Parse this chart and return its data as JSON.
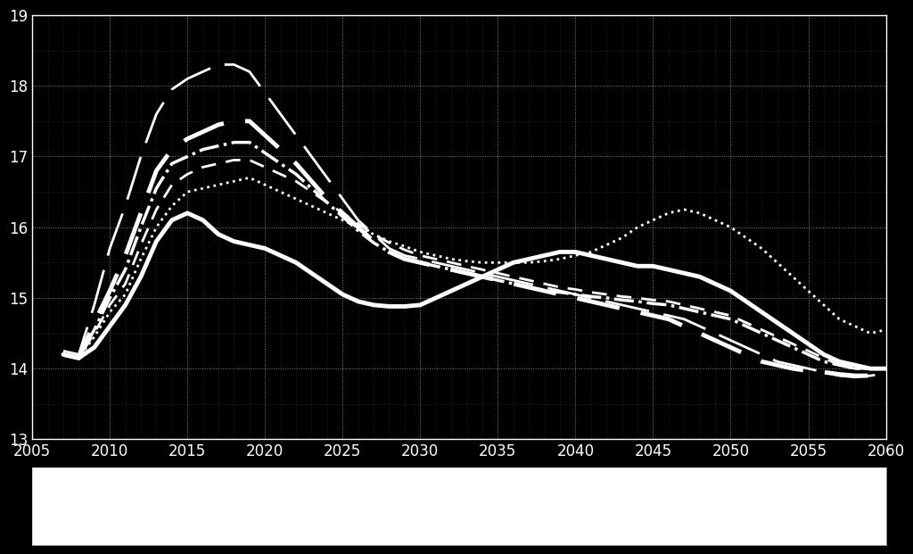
{
  "background_color": "#000000",
  "plot_bg_color": "#000000",
  "line_color": "#ffffff",
  "grid_color": "#888888",
  "text_color": "#ffffff",
  "xlim": [
    2005,
    2060
  ],
  "ylim": [
    13,
    19
  ],
  "xticks": [
    2005,
    2010,
    2015,
    2020,
    2025,
    2030,
    2035,
    2040,
    2045,
    2050,
    2055,
    2060
  ],
  "yticks": [
    13,
    14,
    15,
    16,
    17,
    18,
    19
  ],
  "lines": {
    "solid_thick": {
      "x": [
        2007,
        2008,
        2009,
        2010,
        2011,
        2012,
        2013,
        2014,
        2015,
        2016,
        2017,
        2018,
        2019,
        2020,
        2021,
        2022,
        2023,
        2024,
        2025,
        2026,
        2027,
        2028,
        2029,
        2030,
        2031,
        2032,
        2033,
        2034,
        2035,
        2036,
        2037,
        2038,
        2039,
        2040,
        2041,
        2042,
        2043,
        2044,
        2045,
        2046,
        2047,
        2048,
        2049,
        2050,
        2051,
        2052,
        2053,
        2054,
        2055,
        2056,
        2057,
        2058,
        2059,
        2060
      ],
      "y": [
        14.2,
        14.15,
        14.3,
        14.6,
        14.9,
        15.3,
        15.8,
        16.1,
        16.2,
        16.1,
        15.9,
        15.8,
        15.75,
        15.7,
        15.6,
        15.5,
        15.35,
        15.2,
        15.05,
        14.95,
        14.9,
        14.88,
        14.88,
        14.9,
        15.0,
        15.1,
        15.2,
        15.3,
        15.4,
        15.5,
        15.55,
        15.6,
        15.65,
        15.65,
        15.6,
        15.55,
        15.5,
        15.45,
        15.45,
        15.4,
        15.35,
        15.3,
        15.2,
        15.1,
        14.95,
        14.8,
        14.65,
        14.5,
        14.35,
        14.2,
        14.1,
        14.05,
        14.0,
        14.0
      ],
      "style": "solid",
      "linewidth": 3.5,
      "color": "#ffffff"
    },
    "long_dash": {
      "x": [
        2007,
        2008,
        2009,
        2010,
        2011,
        2012,
        2013,
        2014,
        2015,
        2016,
        2017,
        2018,
        2019,
        2020,
        2021,
        2022,
        2023,
        2024,
        2025,
        2026,
        2027,
        2028,
        2029,
        2030,
        2031,
        2032,
        2033,
        2034,
        2035,
        2036,
        2037,
        2038,
        2039,
        2040,
        2041,
        2042,
        2043,
        2044,
        2045,
        2046,
        2047,
        2048,
        2049,
        2050,
        2051,
        2052,
        2053,
        2054,
        2055,
        2056,
        2057,
        2058,
        2059,
        2060
      ],
      "y": [
        14.25,
        14.2,
        14.9,
        15.7,
        16.3,
        17.0,
        17.6,
        17.95,
        18.1,
        18.2,
        18.3,
        18.3,
        18.2,
        17.9,
        17.6,
        17.3,
        17.0,
        16.7,
        16.4,
        16.1,
        15.9,
        15.7,
        15.6,
        15.55,
        15.5,
        15.45,
        15.4,
        15.35,
        15.3,
        15.25,
        15.2,
        15.15,
        15.1,
        15.05,
        15.0,
        14.95,
        14.9,
        14.85,
        14.8,
        14.75,
        14.7,
        14.6,
        14.5,
        14.4,
        14.3,
        14.2,
        14.1,
        14.05,
        14.0,
        13.95,
        13.9,
        13.88,
        13.9,
        13.93
      ],
      "style": "dashed",
      "linewidth": 2.0,
      "color": "#ffffff",
      "dashes": [
        18,
        6
      ]
    },
    "medium_dash": {
      "x": [
        2007,
        2008,
        2009,
        2010,
        2011,
        2012,
        2013,
        2014,
        2015,
        2016,
        2017,
        2018,
        2019,
        2020,
        2021,
        2022,
        2023,
        2024,
        2025,
        2026,
        2027,
        2028,
        2029,
        2030,
        2031,
        2032,
        2033,
        2034,
        2035,
        2036,
        2037,
        2038,
        2039,
        2040,
        2041,
        2042,
        2043,
        2044,
        2045,
        2046,
        2047,
        2048,
        2049,
        2050,
        2051,
        2052,
        2053,
        2054,
        2055,
        2056,
        2057,
        2058,
        2059,
        2060
      ],
      "y": [
        14.2,
        14.15,
        14.65,
        15.1,
        15.6,
        16.2,
        16.8,
        17.1,
        17.25,
        17.35,
        17.45,
        17.5,
        17.5,
        17.3,
        17.1,
        16.9,
        16.65,
        16.4,
        16.2,
        16.0,
        15.8,
        15.65,
        15.55,
        15.5,
        15.45,
        15.4,
        15.35,
        15.3,
        15.25,
        15.2,
        15.15,
        15.1,
        15.05,
        15.0,
        14.95,
        14.9,
        14.85,
        14.8,
        14.75,
        14.7,
        14.6,
        14.5,
        14.4,
        14.3,
        14.2,
        14.1,
        14.05,
        14.0,
        13.97,
        13.95,
        13.92,
        13.9,
        13.9,
        13.9
      ],
      "style": "dashed",
      "linewidth": 3.5,
      "color": "#ffffff",
      "dashes": [
        10,
        5
      ]
    },
    "dash_dot_thick": {
      "x": [
        2007,
        2008,
        2009,
        2010,
        2011,
        2012,
        2013,
        2014,
        2015,
        2016,
        2017,
        2018,
        2019,
        2020,
        2021,
        2022,
        2023,
        2024,
        2025,
        2026,
        2027,
        2028,
        2029,
        2030,
        2031,
        2032,
        2033,
        2034,
        2035,
        2036,
        2037,
        2038,
        2039,
        2040,
        2041,
        2042,
        2043,
        2044,
        2045,
        2046,
        2047,
        2048,
        2049,
        2050,
        2051,
        2052,
        2053,
        2054,
        2055,
        2056,
        2057,
        2058,
        2059,
        2060
      ],
      "y": [
        14.2,
        14.15,
        14.55,
        15.0,
        15.4,
        16.0,
        16.55,
        16.9,
        17.0,
        17.1,
        17.15,
        17.2,
        17.2,
        17.05,
        16.9,
        16.75,
        16.55,
        16.35,
        16.15,
        15.95,
        15.78,
        15.65,
        15.55,
        15.5,
        15.45,
        15.4,
        15.35,
        15.3,
        15.25,
        15.2,
        15.15,
        15.1,
        15.08,
        15.05,
        15.02,
        15.0,
        14.97,
        14.95,
        14.92,
        14.9,
        14.85,
        14.8,
        14.75,
        14.7,
        14.6,
        14.5,
        14.4,
        14.3,
        14.2,
        14.1,
        14.05,
        14.0,
        14.0,
        14.0
      ],
      "style": "dashdot",
      "linewidth": 2.5,
      "color": "#ffffff"
    },
    "short_dash": {
      "x": [
        2007,
        2008,
        2009,
        2010,
        2011,
        2012,
        2013,
        2014,
        2015,
        2016,
        2017,
        2018,
        2019,
        2020,
        2021,
        2022,
        2023,
        2024,
        2025,
        2026,
        2027,
        2028,
        2029,
        2030,
        2031,
        2032,
        2033,
        2034,
        2035,
        2036,
        2037,
        2038,
        2039,
        2040,
        2041,
        2042,
        2043,
        2044,
        2045,
        2046,
        2047,
        2048,
        2049,
        2050,
        2051,
        2052,
        2053,
        2054,
        2055,
        2056,
        2057,
        2058,
        2059,
        2060
      ],
      "y": [
        14.2,
        14.15,
        14.5,
        14.9,
        15.2,
        15.75,
        16.25,
        16.6,
        16.75,
        16.85,
        16.9,
        16.95,
        16.95,
        16.85,
        16.75,
        16.65,
        16.5,
        16.35,
        16.2,
        16.05,
        15.9,
        15.78,
        15.68,
        15.6,
        15.55,
        15.5,
        15.45,
        15.4,
        15.35,
        15.3,
        15.25,
        15.2,
        15.15,
        15.12,
        15.08,
        15.05,
        15.02,
        15.0,
        14.97,
        14.95,
        14.9,
        14.85,
        14.8,
        14.75,
        14.65,
        14.55,
        14.45,
        14.35,
        14.25,
        14.15,
        14.05,
        14.0,
        14.0,
        14.0
      ],
      "style": "dashed",
      "linewidth": 2.0,
      "color": "#ffffff",
      "dashes": [
        6,
        4
      ]
    },
    "dotted": {
      "x": [
        2007,
        2008,
        2009,
        2010,
        2011,
        2012,
        2013,
        2014,
        2015,
        2016,
        2017,
        2018,
        2019,
        2020,
        2021,
        2022,
        2023,
        2024,
        2025,
        2026,
        2027,
        2028,
        2029,
        2030,
        2031,
        2032,
        2033,
        2034,
        2035,
        2036,
        2037,
        2038,
        2039,
        2040,
        2041,
        2042,
        2043,
        2044,
        2045,
        2046,
        2047,
        2048,
        2049,
        2050,
        2051,
        2052,
        2053,
        2054,
        2055,
        2056,
        2057,
        2058,
        2059,
        2060
      ],
      "y": [
        14.2,
        14.15,
        14.45,
        14.8,
        15.05,
        15.55,
        16.0,
        16.3,
        16.5,
        16.55,
        16.6,
        16.65,
        16.7,
        16.6,
        16.5,
        16.4,
        16.3,
        16.2,
        16.1,
        16.0,
        15.9,
        15.8,
        15.73,
        15.65,
        15.6,
        15.55,
        15.52,
        15.5,
        15.5,
        15.5,
        15.5,
        15.52,
        15.55,
        15.6,
        15.65,
        15.75,
        15.85,
        16.0,
        16.1,
        16.2,
        16.25,
        16.2,
        16.1,
        16.0,
        15.85,
        15.7,
        15.5,
        15.3,
        15.1,
        14.9,
        14.7,
        14.6,
        14.5,
        14.55
      ],
      "style": "dotted",
      "linewidth": 2.0,
      "color": "#ffffff"
    }
  }
}
